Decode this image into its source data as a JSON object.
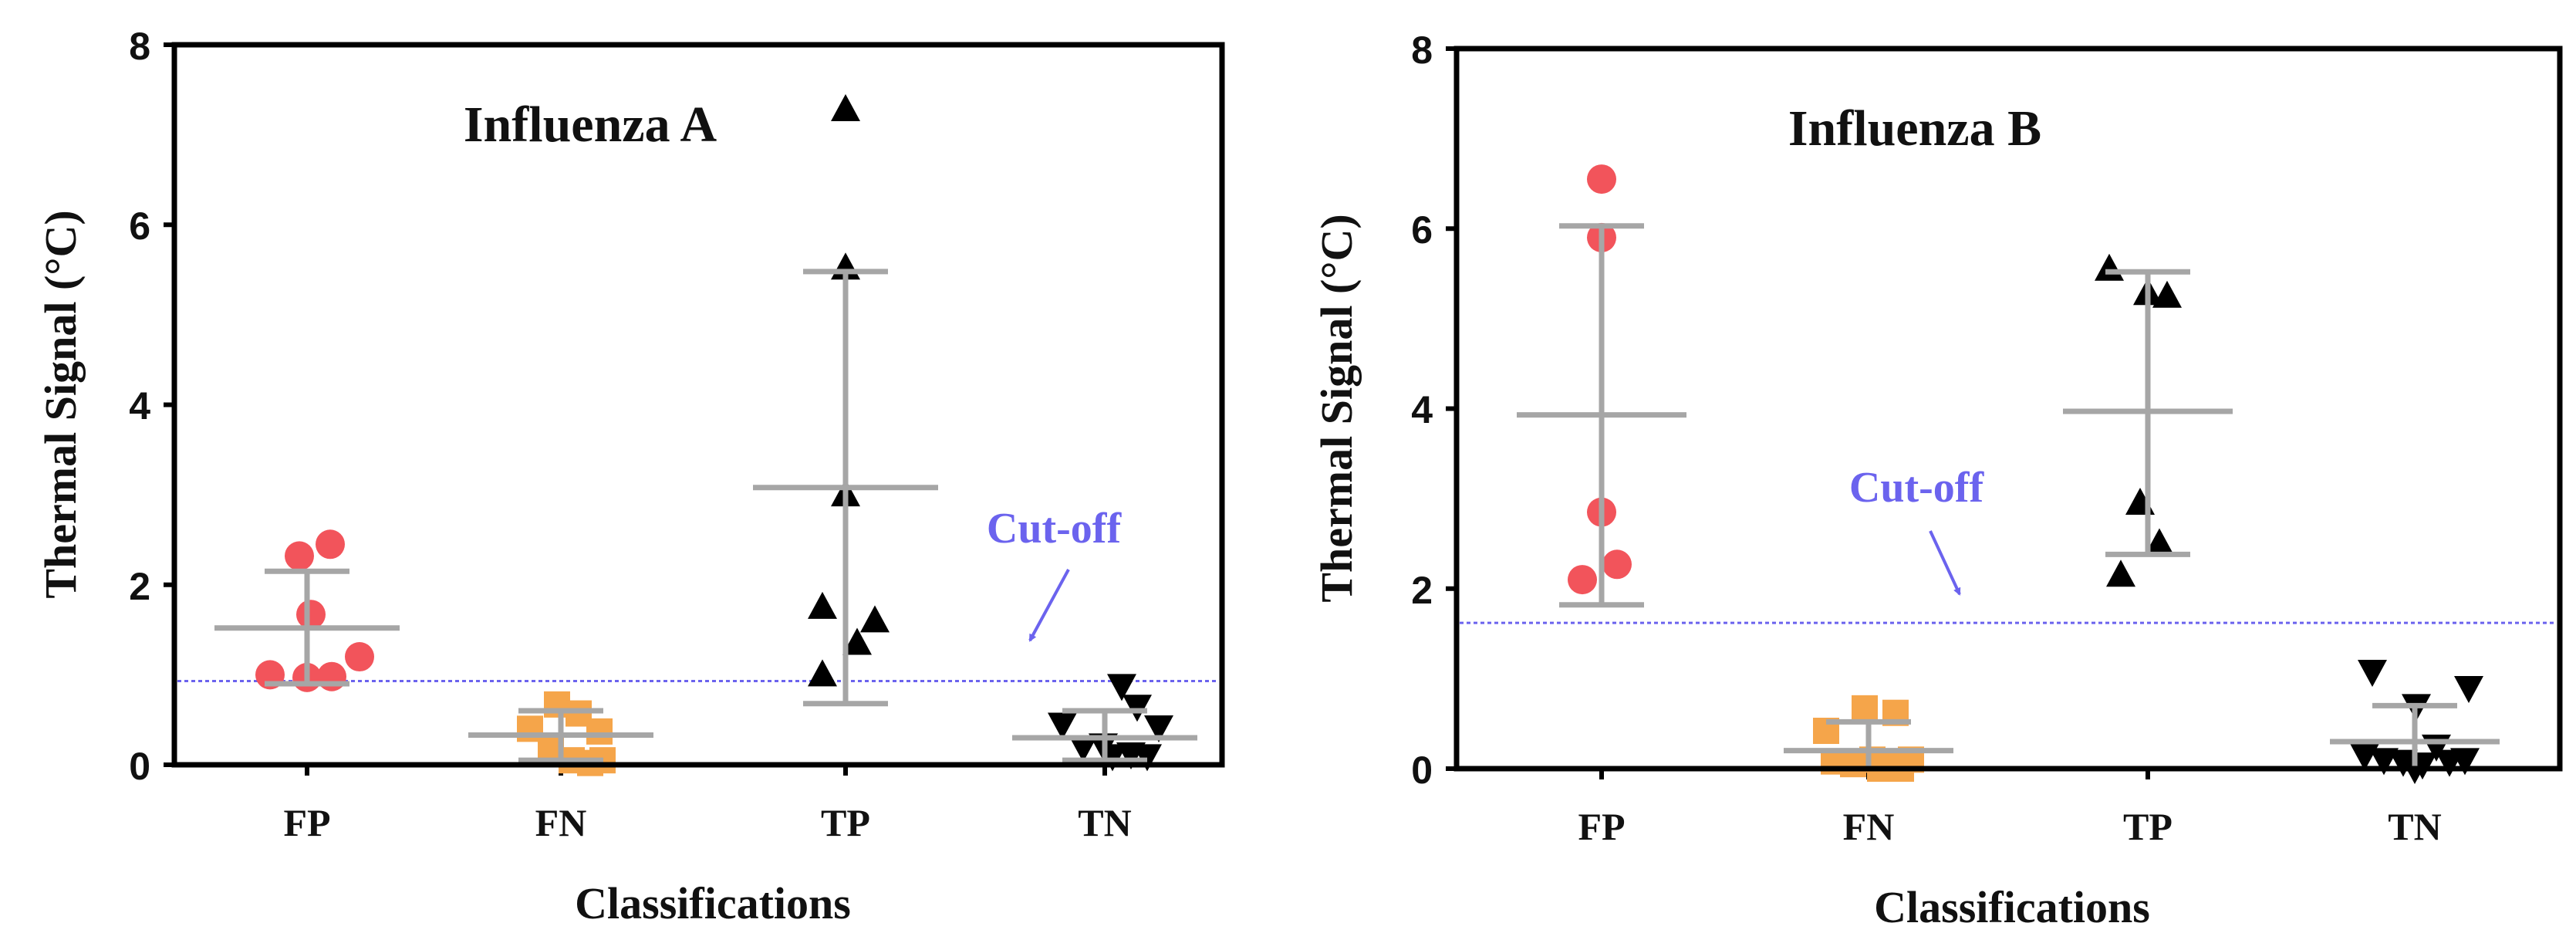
{
  "colors": {
    "FP": "#f2545b",
    "FN": "#f5a54a",
    "TP": "#000000",
    "TN": "#000000",
    "error_bar": "#a6a6a6",
    "cutoff": "#6b63ee",
    "axis": "#000000"
  },
  "chart_data": [
    {
      "type": "scatter",
      "title": "Influenza A",
      "xlabel": "Classifications",
      "ylabel": "Thermal Signal (°C)",
      "ylim": [
        0,
        8
      ],
      "yticks": [
        "0",
        "2",
        "4",
        "6",
        "8"
      ],
      "categories": [
        "FP",
        "FN",
        "TP",
        "TN"
      ],
      "cutoff": {
        "label": "Cut-off",
        "value": 0.93
      },
      "series": [
        {
          "name": "FP",
          "marker": "circle",
          "mean": 1.52,
          "sd_low": 0.9,
          "sd_high": 2.15,
          "points": [
            {
              "o": -0.48,
              "y": 1.0
            },
            {
              "o": -0.1,
              "y": 2.32
            },
            {
              "o": 0.3,
              "y": 2.45
            },
            {
              "o": 0.05,
              "y": 1.67
            },
            {
              "o": 0.0,
              "y": 0.97
            },
            {
              "o": 0.32,
              "y": 0.98
            },
            {
              "o": 0.68,
              "y": 1.2
            }
          ]
        },
        {
          "name": "FN",
          "marker": "square",
          "mean": 0.33,
          "sd_low": 0.05,
          "sd_high": 0.6,
          "points": [
            {
              "o": -0.4,
              "y": 0.4
            },
            {
              "o": -0.13,
              "y": 0.18
            },
            {
              "o": -0.05,
              "y": 0.67
            },
            {
              "o": 0.23,
              "y": 0.57
            },
            {
              "o": 0.5,
              "y": 0.37
            },
            {
              "o": 0.14,
              "y": 0.05
            },
            {
              "o": 0.38,
              "y": 0.02
            },
            {
              "o": 0.54,
              "y": 0.05
            }
          ]
        },
        {
          "name": "TP",
          "marker": "triangle-up",
          "mean": 3.08,
          "sd_low": 0.68,
          "sd_high": 5.48,
          "points": [
            {
              "o": 0.0,
              "y": 7.28
            },
            {
              "o": 0.0,
              "y": 5.52
            },
            {
              "o": 0.0,
              "y": 3.0
            },
            {
              "o": -0.3,
              "y": 1.75
            },
            {
              "o": 0.38,
              "y": 1.6
            },
            {
              "o": 0.15,
              "y": 1.35
            },
            {
              "o": -0.3,
              "y": 1.0
            }
          ]
        },
        {
          "name": "TN",
          "marker": "triangle-down",
          "mean": 0.3,
          "sd_low": 0.05,
          "sd_high": 0.6,
          "points": [
            {
              "o": -0.55,
              "y": 0.45
            },
            {
              "o": -0.28,
              "y": 0.2
            },
            {
              "o": -0.02,
              "y": 0.22
            },
            {
              "o": 0.22,
              "y": 0.88
            },
            {
              "o": 0.42,
              "y": 0.65
            },
            {
              "o": 0.7,
              "y": 0.42
            },
            {
              "o": 0.1,
              "y": 0.1
            },
            {
              "o": 0.34,
              "y": 0.12
            },
            {
              "o": 0.55,
              "y": 0.1
            }
          ]
        }
      ]
    },
    {
      "type": "scatter",
      "title": "Influenza B",
      "xlabel": "Classifications",
      "ylabel": "Thermal Signal (°C)",
      "ylim": [
        0,
        8
      ],
      "yticks": [
        "0",
        "2",
        "4",
        "6",
        "8"
      ],
      "categories": [
        "FP",
        "FN",
        "TP",
        "TN"
      ],
      "cutoff": {
        "label": "Cut-off",
        "value": 1.62
      },
      "series": [
        {
          "name": "FP",
          "marker": "circle",
          "mean": 3.93,
          "sd_low": 1.82,
          "sd_high": 6.03,
          "points": [
            {
              "o": 0.0,
              "y": 6.55
            },
            {
              "o": 0.0,
              "y": 5.9
            },
            {
              "o": 0.0,
              "y": 2.85
            },
            {
              "o": 0.2,
              "y": 2.27
            },
            {
              "o": -0.25,
              "y": 2.1
            }
          ]
        },
        {
          "name": "FN",
          "marker": "square",
          "mean": 0.2,
          "sd_low": 0.0,
          "sd_high": 0.52,
          "points": [
            {
              "o": -0.55,
              "y": 0.42
            },
            {
              "o": -0.05,
              "y": 0.67
            },
            {
              "o": 0.35,
              "y": 0.62
            },
            {
              "o": -0.45,
              "y": 0.08
            },
            {
              "o": -0.2,
              "y": 0.05
            },
            {
              "o": 0.05,
              "y": 0.1
            },
            {
              "o": 0.3,
              "y": 0.05
            },
            {
              "o": 0.55,
              "y": 0.1
            },
            {
              "o": 0.15,
              "y": 0.0
            },
            {
              "o": 0.42,
              "y": 0.0
            }
          ]
        },
        {
          "name": "TP",
          "marker": "triangle-up",
          "mean": 3.97,
          "sd_low": 2.38,
          "sd_high": 5.52,
          "points": [
            {
              "o": -0.5,
              "y": 5.55
            },
            {
              "o": 0.0,
              "y": 5.28
            },
            {
              "o": 0.25,
              "y": 5.25
            },
            {
              "o": -0.1,
              "y": 2.95
            },
            {
              "o": 0.15,
              "y": 2.5
            },
            {
              "o": -0.35,
              "y": 2.15
            }
          ]
        },
        {
          "name": "TN",
          "marker": "triangle-down",
          "mean": 0.3,
          "sd_low": 0.0,
          "sd_high": 0.7,
          "points": [
            {
              "o": -0.55,
              "y": 1.08
            },
            {
              "o": 0.7,
              "y": 0.9
            },
            {
              "o": 0.02,
              "y": 0.7
            },
            {
              "o": 0.28,
              "y": 0.25
            },
            {
              "o": -0.65,
              "y": 0.15
            },
            {
              "o": -0.4,
              "y": 0.1
            },
            {
              "o": -0.15,
              "y": 0.08
            },
            {
              "o": 0.1,
              "y": 0.05
            },
            {
              "o": 0.45,
              "y": 0.08
            },
            {
              "o": 0.65,
              "y": 0.1
            },
            {
              "o": 0.0,
              "y": 0.0
            }
          ]
        }
      ]
    }
  ]
}
